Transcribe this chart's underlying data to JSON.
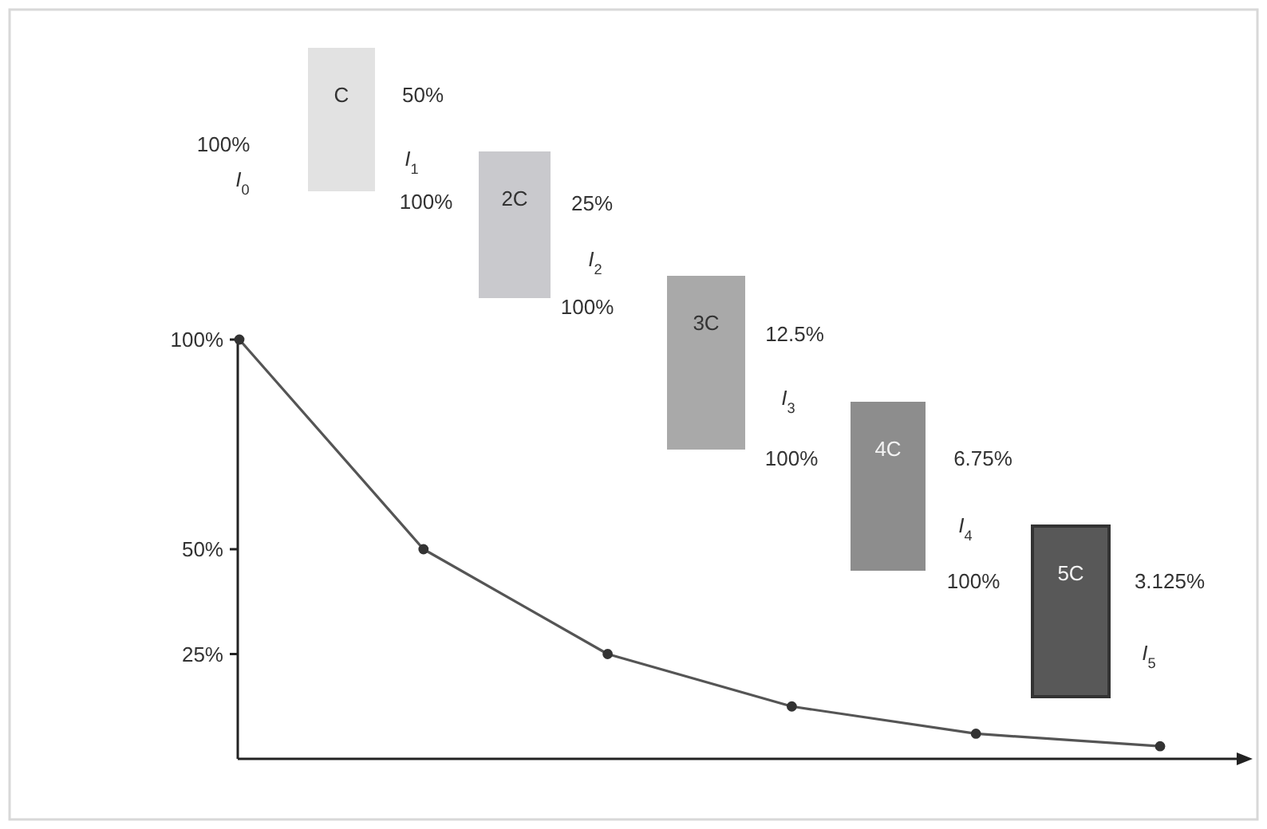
{
  "chart_data": {
    "type": "line",
    "categories": [
      null,
      null,
      null,
      null,
      null,
      null
    ],
    "series": [
      {
        "color": "#555555",
        "values": [
          100,
          50,
          25,
          12.5,
          6,
          3
        ]
      }
    ],
    "ylim": [
      0,
      100
    ],
    "yticks": [
      {
        "value": 25,
        "label": "25%"
      },
      {
        "value": 50,
        "label": "50%"
      },
      {
        "value": 100,
        "label": "100%"
      }
    ],
    "marker": "circle",
    "line_style": "solid",
    "annotations": [
      "100%",
      "I$_{0}$",
      "C",
      "50%",
      "I$_{1}$",
      "100%",
      "2C",
      "25%",
      "I$_{2}$",
      "100%",
      "3C",
      "12.5%",
      "I$_{3}$",
      "100%",
      "4C",
      "6.75%",
      "I$_{4}$",
      "100%",
      "5C",
      "3.125%",
      "I$_{5}$"
    ]
  }
}
